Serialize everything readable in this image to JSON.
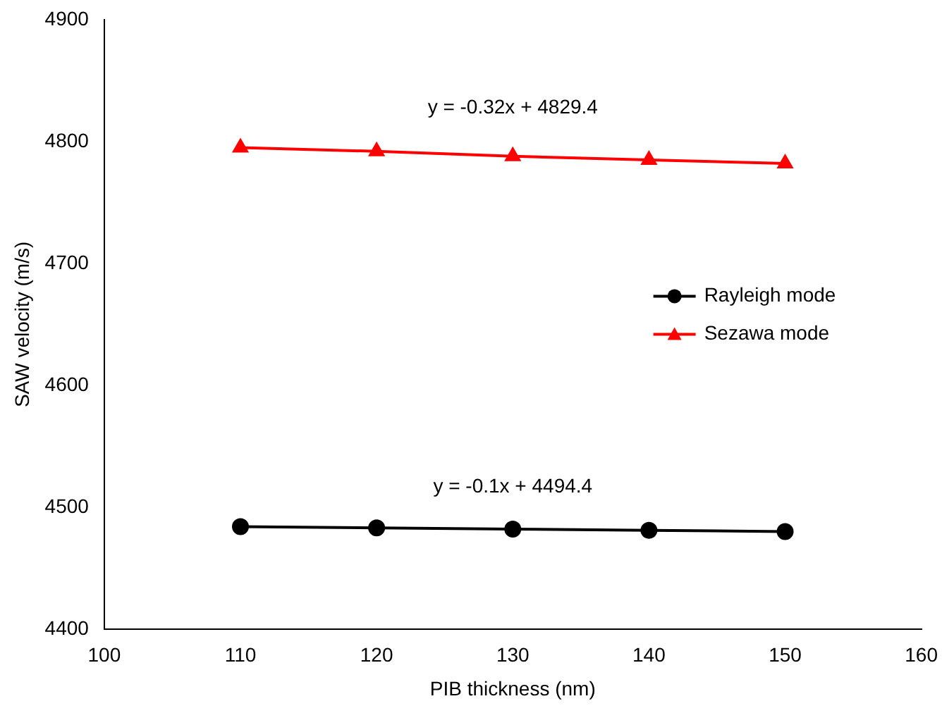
{
  "chart_data": {
    "type": "line",
    "xlabel": "PIB thickness (nm)",
    "ylabel": "SAW velocity (m/s)",
    "x": [
      110,
      120,
      130,
      140,
      150
    ],
    "series": [
      {
        "name": "Rayleigh mode",
        "color": "#000000",
        "marker": "circle",
        "values": [
          4484,
          4483,
          4482,
          4481,
          4480
        ]
      },
      {
        "name": "Sezawa mode",
        "color": "#ff0000",
        "marker": "triangle",
        "values": [
          4795,
          4792,
          4788,
          4785,
          4782
        ]
      }
    ],
    "annotations": [
      "y = -0.32x + 4829.4",
      "y = -0.1x + 4494.4"
    ],
    "xlim": [
      100,
      160
    ],
    "xticks": [
      100,
      110,
      120,
      130,
      140,
      150,
      160
    ],
    "ylim": [
      4400,
      4900
    ],
    "yticks": [
      4400,
      4500,
      4600,
      4700,
      4800,
      4900
    ],
    "grid": false,
    "legend": "right",
    "line_style": "solid"
  }
}
